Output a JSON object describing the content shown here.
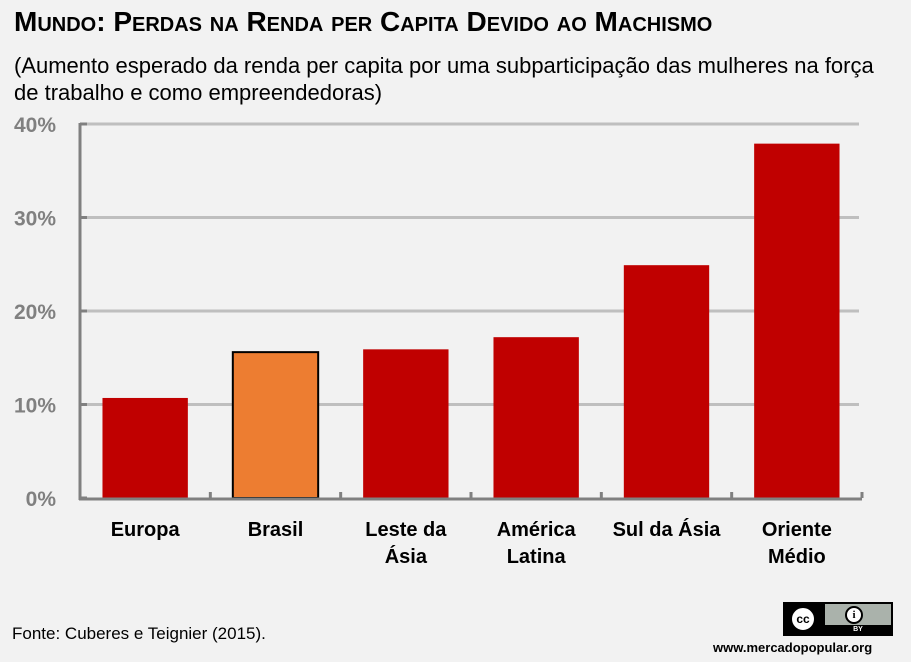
{
  "chart_data": {
    "type": "bar",
    "title": "Mundo: Perdas na Renda per Capita Devido ao Machismo",
    "subtitle": "(Aumento esperado da renda per capita por uma subparticipação das mulheres na força de trabalho e como empreendedoras)",
    "xlabel": "",
    "ylabel": "",
    "categories": [
      [
        "Europa"
      ],
      [
        "Brasil"
      ],
      [
        "Leste da",
        "Ásia"
      ],
      [
        "América",
        "Latina"
      ],
      [
        "Sul da Ásia"
      ],
      [
        "Oriente",
        "Médio"
      ]
    ],
    "category_names": [
      "Europa",
      "Brasil",
      "Leste da Ásia",
      "América Latina",
      "Sul da Ásia",
      "Oriente Médio"
    ],
    "values": [
      10.7,
      15.6,
      15.9,
      17.2,
      24.9,
      37.9
    ],
    "unit": "%",
    "highlight_index": 1,
    "colors": {
      "default": "#c00000",
      "highlight": "#ed7d31",
      "highlight_border": "#000000",
      "grid": "#bfbfbf",
      "axis": "#808080",
      "tick_label": "#808080"
    },
    "ylim": [
      0,
      40
    ],
    "yticks": [
      0,
      10,
      20,
      30,
      40
    ],
    "ytick_labels": [
      "0%",
      "10%",
      "20%",
      "30%",
      "40%"
    ],
    "grid": true,
    "legend": "none"
  },
  "footer": {
    "source": "Fonte: Cuberes e Teignier (2015).",
    "license_badge": {
      "left": "cc",
      "right_icon": "i",
      "right_text": "BY"
    },
    "website": "www.mercadopopular.org"
  }
}
